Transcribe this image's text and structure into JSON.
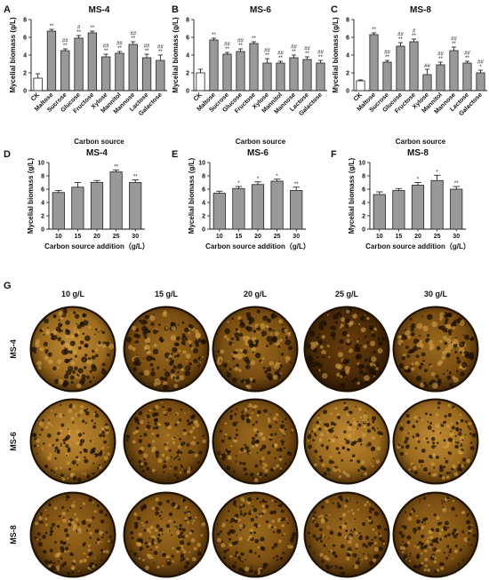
{
  "chart_data": [
    {
      "id": "A",
      "type": "bar",
      "title": "MS-4",
      "xlabel": "Carbon source",
      "ylabel": "Mycelial biomass (g/L)",
      "ylim": [
        0,
        8
      ],
      "yticks": [
        0,
        2,
        4,
        6,
        8
      ],
      "categories": [
        "CK",
        "Maltose",
        "Sucrose",
        "Glucose",
        "Fructose",
        "Xylose",
        "Mannitol",
        "Mannose",
        "Lactose",
        "Galactose"
      ],
      "values": [
        1.4,
        6.7,
        4.5,
        5.9,
        6.5,
        3.8,
        4.2,
        5.2,
        3.7,
        3.4
      ],
      "errors": [
        0.5,
        0.2,
        0.2,
        0.3,
        0.2,
        0.3,
        0.2,
        0.3,
        0.4,
        0.6
      ],
      "significance": [
        [
          "",
          ""
        ],
        [
          "",
          "**"
        ],
        [
          "##",
          "**"
        ],
        [
          "#",
          "**"
        ],
        [
          "",
          "**"
        ],
        [
          "##",
          "**"
        ],
        [
          "##",
          "**"
        ],
        [
          "##",
          "**"
        ],
        [
          "##",
          "**"
        ],
        [
          "##",
          "**"
        ]
      ],
      "first_bar_white": true,
      "rotate_labels": true
    },
    {
      "id": "B",
      "type": "bar",
      "title": "MS-6",
      "xlabel": "Carbon source",
      "ylabel": "Mycelial biomass (g/L)",
      "ylim": [
        0,
        8
      ],
      "yticks": [
        0,
        2,
        4,
        6,
        8
      ],
      "categories": [
        "CK",
        "Maltose",
        "Sucrose",
        "Glucose",
        "Fructose",
        "Xylose",
        "Mannitol",
        "Mannose",
        "Lactose",
        "Galactose"
      ],
      "values": [
        2.0,
        5.7,
        4.1,
        4.4,
        5.3,
        3.1,
        3.1,
        3.7,
        3.5,
        3.1
      ],
      "errors": [
        0.4,
        0.2,
        0.2,
        0.3,
        0.2,
        0.5,
        0.2,
        0.3,
        0.3,
        0.3
      ],
      "significance": [
        [
          "",
          ""
        ],
        [
          "",
          "**"
        ],
        [
          "##",
          "**"
        ],
        [
          "##",
          "**"
        ],
        [
          "",
          "**"
        ],
        [
          "##",
          "**"
        ],
        [
          "##",
          "**"
        ],
        [
          "##",
          "**"
        ],
        [
          "##",
          "**"
        ],
        [
          "##",
          "**"
        ]
      ],
      "first_bar_white": true,
      "rotate_labels": true
    },
    {
      "id": "C",
      "type": "bar",
      "title": "MS-8",
      "xlabel": "Carbon source",
      "ylabel": "Mycelial biomass (g/L)",
      "ylim": [
        0,
        8
      ],
      "yticks": [
        0,
        2,
        4,
        6,
        8
      ],
      "categories": [
        "CK",
        "Maltose",
        "Sucrose",
        "Glucose",
        "Fructose",
        "Xylose",
        "Mannitol",
        "Mannose",
        "Lactose",
        "Galactose"
      ],
      "values": [
        1.1,
        6.3,
        3.2,
        5.0,
        5.5,
        1.8,
        2.9,
        4.5,
        3.1,
        2.0
      ],
      "errors": [
        0.1,
        0.2,
        0.2,
        0.4,
        0.3,
        0.6,
        0.3,
        0.4,
        0.2,
        0.3
      ],
      "significance": [
        [
          "",
          ""
        ],
        [
          "",
          "**"
        ],
        [
          "##",
          "**"
        ],
        [
          "##",
          "**"
        ],
        [
          "#",
          "**"
        ],
        [
          "##",
          ""
        ],
        [
          "##",
          "**"
        ],
        [
          "##",
          "**"
        ],
        [
          "##",
          "**"
        ],
        [
          "##",
          "*"
        ]
      ],
      "first_bar_white": true,
      "rotate_labels": true
    },
    {
      "id": "D",
      "type": "bar",
      "title": "MS-4",
      "xlabel": "Carbon source addition（g/L）",
      "ylabel": "Mycelial biomass (g/L)",
      "ylim": [
        0,
        10
      ],
      "yticks": [
        0,
        2,
        4,
        6,
        8,
        10
      ],
      "categories": [
        "10",
        "15",
        "20",
        "25",
        "30"
      ],
      "values": [
        5.5,
        6.3,
        7.0,
        8.6,
        7.0
      ],
      "errors": [
        0.3,
        0.7,
        0.3,
        0.3,
        0.4
      ],
      "significance": [
        [
          "",
          ""
        ],
        [
          "",
          ""
        ],
        [
          "",
          ""
        ],
        [
          "",
          "**"
        ],
        [
          "",
          "**"
        ]
      ],
      "first_bar_white": false,
      "rotate_labels": false
    },
    {
      "id": "E",
      "type": "bar",
      "title": "MS-6",
      "xlabel": "Carbon source addition（g/L）",
      "ylabel": "Mycelial biomass (g/L)",
      "ylim": [
        0,
        10
      ],
      "yticks": [
        0,
        2,
        4,
        6,
        8,
        10
      ],
      "categories": [
        "10",
        "15",
        "20",
        "25",
        "30"
      ],
      "values": [
        5.4,
        6.1,
        6.7,
        7.2,
        5.8
      ],
      "errors": [
        0.3,
        0.3,
        0.4,
        0.3,
        0.5
      ],
      "significance": [
        [
          "",
          ""
        ],
        [
          "",
          "*"
        ],
        [
          "",
          "*"
        ],
        [
          "",
          "*"
        ],
        [
          "",
          "**"
        ]
      ],
      "first_bar_white": false,
      "rotate_labels": false
    },
    {
      "id": "F",
      "type": "bar",
      "title": "MS-8",
      "xlabel": "Carbon source addition（g/L）",
      "ylabel": "Mycelial biomass (g/L)",
      "ylim": [
        0,
        10
      ],
      "yticks": [
        0,
        2,
        4,
        6,
        8,
        10
      ],
      "categories": [
        "10",
        "15",
        "20",
        "25",
        "30"
      ],
      "values": [
        5.2,
        5.8,
        6.6,
        7.3,
        6.0
      ],
      "errors": [
        0.4,
        0.3,
        0.4,
        0.8,
        0.4
      ],
      "significance": [
        [
          "",
          ""
        ],
        [
          "",
          ""
        ],
        [
          "",
          "*"
        ],
        [
          "",
          "*"
        ],
        [
          "",
          "**"
        ]
      ],
      "first_bar_white": false,
      "rotate_labels": false
    }
  ],
  "photo_panel": {
    "letter": "G",
    "columns": [
      "10 g/L",
      "15 g/L",
      "20 g/L",
      "25 g/L",
      "30 g/L"
    ],
    "rows": [
      "MS-4",
      "MS-6",
      "MS-8"
    ]
  }
}
